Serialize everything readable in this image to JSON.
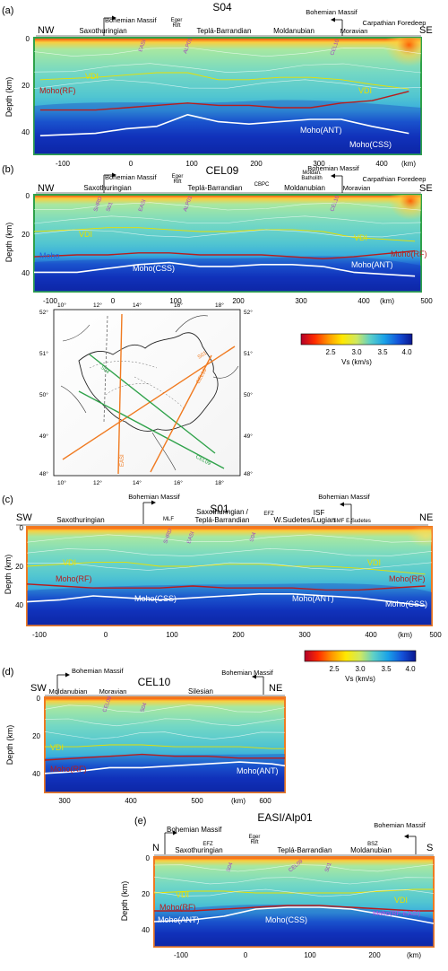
{
  "panels": [
    {
      "letter": "(a)",
      "title": "S04",
      "end_left": "NW",
      "end_right": "SE",
      "ylabel": "Depth (km)",
      "xunit": "(km)",
      "x_ticks": [
        "-100",
        "0",
        "100",
        "200",
        "300",
        "400"
      ],
      "y_ticks": [
        "0",
        "20",
        "40"
      ],
      "units": [
        "Saxothuringian",
        "Teplá-Barrandian",
        "Moldanubian",
        "Moravian",
        "Carpathian Foredeep"
      ],
      "massif": [
        "Bohemian Massif",
        "Bohemian Massif"
      ],
      "rift": [
        "Eger",
        "Rift"
      ],
      "profiles": [
        "EASI",
        "ALP01",
        "CEL10"
      ],
      "interfaces": [
        "VDI",
        "VDI",
        "Moho(RF)",
        "Moho(ANT)",
        "Moho(CSS)"
      ]
    },
    {
      "letter": "(b)",
      "title": "CEL09",
      "end_left": "NW",
      "end_right": "SE",
      "ylabel": "Depth (km)",
      "xunit": "(km)",
      "x_ticks": [
        "-100",
        "0",
        "100",
        "200",
        "300",
        "400",
        "500"
      ],
      "y_ticks": [
        "0",
        "20",
        "40"
      ],
      "units": [
        "Saxothuringian",
        "Teplá-Barrandian",
        "CBPC",
        "Moldanubian",
        "Moravian",
        "Carpathian Foredeep"
      ],
      "massif": [
        "Bohemian Massif",
        "Bohemian Massif"
      ],
      "rift": [
        "Eger",
        "Rift"
      ],
      "batholith": [
        "Moldan.",
        "Batholith"
      ],
      "profiles": [
        "SHRD",
        "S01",
        "EASI",
        "ALP01",
        "CEL10"
      ],
      "interfaces": [
        "VDI",
        "VDI",
        "Moho",
        "Moho(RF)",
        "Moho(ANT)",
        "Moho(CSS)"
      ]
    },
    {
      "letter": "(c)",
      "title": "S01",
      "end_left": "SW",
      "end_right": "NE",
      "ylabel": "Depth (km)",
      "xunit": "(km)",
      "x_ticks": [
        "-100",
        "0",
        "100",
        "200",
        "300",
        "400",
        "500"
      ],
      "y_ticks": [
        "0",
        "20",
        "40"
      ],
      "units": [
        "Saxothuringian",
        "Saxothuringian /",
        "Teplá-Barrandian",
        "W.Sudetes/Lugian",
        "E.Sudetes"
      ],
      "massif": [
        "Bohemian Massif",
        "Bohemian Massif"
      ],
      "faults": [
        "MLF",
        "EFZ",
        "ISF",
        "SMF"
      ],
      "profiles": [
        "SHRD",
        "EASI",
        "S04"
      ],
      "interfaces": [
        "VDI",
        "VDI",
        "Moho(RF)",
        "Moho(RF)",
        "Moho(CSS)",
        "Moho(ANT)",
        "Moho(CSS)"
      ]
    },
    {
      "letter": "(d)",
      "title": "CEL10",
      "end_left": "SW",
      "end_right": "NE",
      "ylabel": "Depth (km)",
      "xunit": "(km)",
      "x_ticks": [
        "300",
        "400",
        "500",
        "600"
      ],
      "y_ticks": [
        "0",
        "20",
        "40"
      ],
      "units": [
        "Moldanubian",
        "Moravian",
        "Silesian"
      ],
      "massif": [
        "Bohemian Massif",
        "Bohemian Massif"
      ],
      "profiles": [
        "CEL09",
        "S04"
      ],
      "interfaces": [
        "VDI",
        "Moho(RF)",
        "Moho(ANT)"
      ]
    },
    {
      "letter": "(e)",
      "title": "EASI/Alp01",
      "end_left": "N",
      "end_right": "S",
      "ylabel": "Depth (km)",
      "xunit": "(km)",
      "x_ticks": [
        "-100",
        "0",
        "100",
        "200"
      ],
      "y_ticks": [
        "0",
        "20",
        "40"
      ],
      "units": [
        "Saxothuringian",
        "Teplá-Barrandian",
        "Moldanubian"
      ],
      "massif": [
        "Bohemian Massif",
        "Bohemian Massif"
      ],
      "rift": [
        "Eger",
        "Rift"
      ],
      "faults": [
        "EFZ",
        "BSZ"
      ],
      "profiles": [
        "S04",
        "CEL09",
        "S01"
      ],
      "interfaces": [
        "VDI",
        "VDI",
        "Moho(RF)",
        "Moho(ANT)",
        "Moho(CSS)",
        "Moho(RF-EASI)"
      ]
    }
  ],
  "colorbar": {
    "label": "Vs (km/s)",
    "ticks": [
      "2.5",
      "3.0",
      "3.5",
      "4.0"
    ]
  },
  "map": {
    "lon_ticks": [
      "10°",
      "12°",
      "14°",
      "16°",
      "18°"
    ],
    "lat_ticks": [
      "52°",
      "51°",
      "50°",
      "49°",
      "48°"
    ],
    "profile_labels": [
      "S01",
      "S04",
      "CEL09",
      "CEL10",
      "EASI"
    ]
  },
  "chart_data": [
    {
      "type": "heatmap",
      "title": "S04",
      "xlabel": "(km)",
      "ylabel": "Depth (km)",
      "xlim": [
        -150,
        480
      ],
      "ylim": [
        50,
        0
      ],
      "colormap_range": [
        2.1,
        4.2
      ],
      "series": [
        {
          "name": "Moho(RF)",
          "x": [
            -140,
            -50,
            0,
            50,
            100,
            150,
            200,
            250,
            300,
            350,
            400,
            460
          ],
          "y": [
            31,
            31,
            30,
            29,
            28,
            29,
            29,
            30,
            30,
            28,
            27,
            23
          ]
        },
        {
          "name": "Moho(ANT)",
          "x": [
            -140,
            -50,
            0,
            50,
            100,
            150,
            200,
            250,
            300,
            350,
            400,
            460
          ],
          "y": [
            42,
            41,
            39,
            38,
            33,
            36,
            37,
            36,
            35,
            35,
            38,
            41
          ]
        },
        {
          "name": "VDI",
          "x": [
            -140,
            -50,
            0,
            50,
            100,
            150,
            200,
            250,
            300,
            350,
            400,
            460
          ],
          "y": [
            18,
            17,
            16,
            15,
            15,
            18,
            18,
            17,
            17,
            18,
            20,
            22
          ]
        }
      ]
    },
    {
      "type": "heatmap",
      "title": "CEL09",
      "xlabel": "(km)",
      "ylabel": "Depth (km)",
      "xlim": [
        -120,
        510
      ],
      "ylim": [
        50,
        0
      ],
      "colormap_range": [
        2.1,
        4.2
      ],
      "series": [
        {
          "name": "Moho(RF)",
          "x": [
            -120,
            -50,
            0,
            50,
            100,
            150,
            200,
            250,
            300,
            350,
            400,
            500
          ],
          "y": [
            32,
            31,
            31,
            30,
            30,
            31,
            31,
            31,
            32,
            33,
            32,
            29
          ]
        },
        {
          "name": "Moho(ANT)",
          "x": [
            -120,
            -50,
            0,
            50,
            100,
            150,
            200,
            250,
            300,
            350,
            400,
            500
          ],
          "y": [
            40,
            40,
            38,
            36,
            35,
            37,
            37,
            36,
            36,
            37,
            40,
            42
          ]
        },
        {
          "name": "VDI",
          "x": [
            -120,
            -50,
            0,
            50,
            100,
            150,
            200,
            250,
            300,
            350,
            400,
            500
          ],
          "y": [
            19,
            18,
            17,
            17,
            18,
            19,
            19,
            18,
            18,
            19,
            22,
            24
          ]
        }
      ]
    },
    {
      "type": "heatmap",
      "title": "S01",
      "xlabel": "(km)",
      "ylabel": "Depth (km)",
      "xlim": [
        -100,
        510
      ],
      "ylim": [
        50,
        0
      ],
      "colormap_range": [
        2.1,
        4.2
      ],
      "series": [
        {
          "name": "Moho(RF)",
          "x": [
            -100,
            -50,
            0,
            50,
            100,
            150,
            200,
            250,
            300,
            350,
            400,
            500
          ],
          "y": [
            29,
            30,
            31,
            31,
            31,
            30,
            31,
            31,
            31,
            32,
            32,
            30
          ]
        },
        {
          "name": "Moho(ANT)",
          "x": [
            -100,
            -50,
            0,
            50,
            100,
            150,
            200,
            250,
            300,
            350,
            400,
            500
          ],
          "y": [
            38,
            37,
            35,
            36,
            37,
            36,
            35,
            34,
            34,
            35,
            36,
            40
          ]
        },
        {
          "name": "VDI",
          "x": [
            -100,
            -50,
            0,
            50,
            100,
            150,
            200,
            250,
            300,
            350,
            400,
            500
          ],
          "y": [
            20,
            19,
            18,
            18,
            20,
            20,
            19,
            19,
            20,
            20,
            21,
            24
          ]
        }
      ]
    },
    {
      "type": "heatmap",
      "title": "CEL10",
      "xlabel": "(km)",
      "ylabel": "Depth (km)",
      "xlim": [
        270,
        640
      ],
      "ylim": [
        50,
        0
      ],
      "colormap_range": [
        2.1,
        4.2
      ],
      "series": [
        {
          "name": "Moho(RF)",
          "x": [
            270,
            320,
            370,
            420,
            470,
            520,
            570,
            620,
            640
          ],
          "y": [
            33,
            32,
            31,
            30,
            31,
            31,
            32,
            32,
            32
          ]
        },
        {
          "name": "Moho(ANT)",
          "x": [
            270,
            320,
            370,
            420,
            470,
            520,
            570,
            620,
            640
          ],
          "y": [
            40,
            39,
            37,
            37,
            36,
            35,
            34,
            35,
            36
          ]
        },
        {
          "name": "VDI",
          "x": [
            270,
            320,
            370,
            420,
            470,
            520,
            570,
            620,
            640
          ],
          "y": [
            26,
            26,
            25,
            25,
            26,
            26,
            26,
            27,
            27
          ]
        }
      ]
    },
    {
      "type": "heatmap",
      "title": "EASI/Alp01",
      "xlabel": "(km)",
      "ylabel": "Depth (km)",
      "xlim": [
        -160,
        280
      ],
      "ylim": [
        50,
        0
      ],
      "colormap_range": [
        2.1,
        4.2
      ],
      "series": [
        {
          "name": "Moho(RF)",
          "x": [
            -160,
            -100,
            -50,
            0,
            50,
            100,
            150,
            200,
            250,
            280
          ],
          "y": [
            30,
            30,
            29,
            28,
            27,
            27,
            28,
            29,
            30,
            30
          ]
        },
        {
          "name": "Moho(ANT)",
          "x": [
            -160,
            -100,
            -50,
            0,
            50,
            100,
            150,
            200,
            250,
            280
          ],
          "y": [
            36,
            35,
            33,
            29,
            28,
            28,
            29,
            32,
            35,
            37
          ]
        },
        {
          "name": "VDI",
          "x": [
            -160,
            -100,
            -50,
            0,
            50,
            100,
            150,
            200,
            250,
            280
          ],
          "y": [
            20,
            19,
            19,
            20,
            20,
            20,
            20,
            19,
            18,
            18
          ]
        }
      ]
    }
  ]
}
